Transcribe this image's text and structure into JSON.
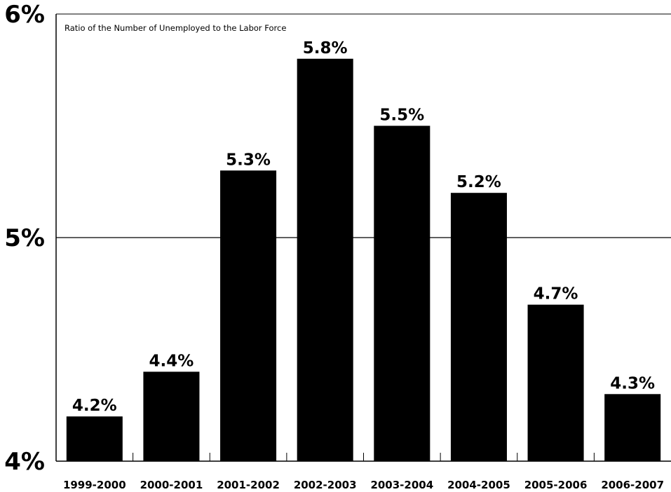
{
  "chart_data": {
    "type": "bar",
    "title": "",
    "subtitle": "Ratio of the Number of Unemployed to the Labor Force",
    "xlabel": "",
    "ylabel": "",
    "categories": [
      "1999-2000",
      "2000-2001",
      "2001-2002",
      "2002-2003",
      "2003-2004",
      "2004-2005",
      "2005-2006",
      "2006-2007"
    ],
    "values": [
      4.2,
      4.4,
      5.3,
      5.8,
      5.5,
      5.2,
      4.7,
      4.3
    ],
    "data_labels": [
      "4.2%",
      "4.4%",
      "5.3%",
      "5.8%",
      "5.5%",
      "5.2%",
      "4.7%",
      "4.3%"
    ],
    "ylim": [
      4,
      6
    ],
    "yticks": [
      4,
      5,
      6
    ],
    "ytick_labels": [
      "4%",
      "5%",
      "6%"
    ],
    "grid": "horizontal line at 5%",
    "bar_color": "#000000",
    "legend": "none"
  }
}
